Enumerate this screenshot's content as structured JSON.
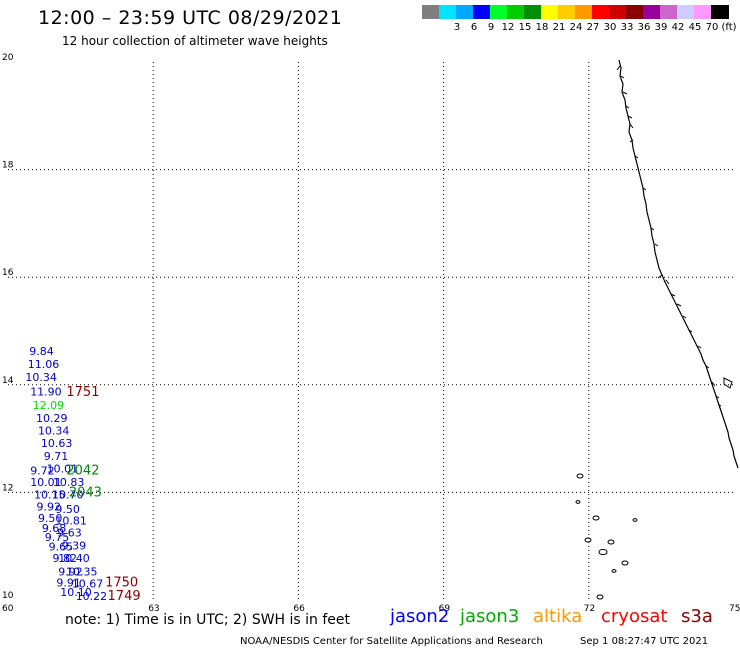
{
  "header": {
    "title": "12:00 – 23:59 UTC 08/29/2021",
    "subtitle": "12 hour collection of altimeter wave heights"
  },
  "legend": {
    "swatches": [
      {
        "color": "#7f7f7f",
        "label": ""
      },
      {
        "color": "#00e5ff",
        "label": "3"
      },
      {
        "color": "#00a8ff",
        "label": "6"
      },
      {
        "color": "#0000ff",
        "label": "9"
      },
      {
        "color": "#00ff2a",
        "label": "12"
      },
      {
        "color": "#00cc00",
        "label": "15"
      },
      {
        "color": "#008f00",
        "label": "18"
      },
      {
        "color": "#ffff00",
        "label": "21"
      },
      {
        "color": "#ffcc00",
        "label": "24"
      },
      {
        "color": "#ff9900",
        "label": "27"
      },
      {
        "color": "#ff0000",
        "label": "30"
      },
      {
        "color": "#cc0000",
        "label": "33"
      },
      {
        "color": "#8b0000",
        "label": "36"
      },
      {
        "color": "#990099",
        "label": "39"
      },
      {
        "color": "#cc66cc",
        "label": "42"
      },
      {
        "color": "#ccccff",
        "label": "45"
      },
      {
        "color": "#ff99ff",
        "label": "70"
      },
      {
        "color": "#000000",
        "label": "(ft)"
      }
    ]
  },
  "axes": {
    "lon_ticks": [
      "60",
      "63",
      "66",
      "69",
      "72",
      "75"
    ],
    "lat_ticks": [
      "10",
      "12",
      "14",
      "16",
      "18",
      "20"
    ],
    "lon_range": [
      60,
      75
    ],
    "lat_range": [
      10,
      20
    ]
  },
  "wave_heights": [
    {
      "text": "9.84",
      "lon": 60.48,
      "lat": 14.55,
      "color": "#0000cc"
    },
    {
      "text": "11.06",
      "lon": 60.45,
      "lat": 14.31,
      "color": "#0000cc"
    },
    {
      "text": "10.34",
      "lon": 60.4,
      "lat": 14.07,
      "color": "#0000cc"
    },
    {
      "text": "11.90",
      "lon": 60.5,
      "lat": 13.8,
      "color": "#0000cc"
    },
    {
      "text": "12.09",
      "lon": 60.55,
      "lat": 13.55,
      "color": "#00dd00"
    },
    {
      "text": "10.29",
      "lon": 60.62,
      "lat": 13.31,
      "color": "#0000cc"
    },
    {
      "text": "10.34",
      "lon": 60.66,
      "lat": 13.08,
      "color": "#0000cc"
    },
    {
      "text": "10.63",
      "lon": 60.72,
      "lat": 12.84,
      "color": "#0000cc"
    },
    {
      "text": "9.71",
      "lon": 60.78,
      "lat": 12.6,
      "color": "#0000cc"
    },
    {
      "text": "10.01",
      "lon": 60.84,
      "lat": 12.37,
      "color": "#0000cc"
    },
    {
      "text": "9.72",
      "lon": 60.5,
      "lat": 12.33,
      "color": "#0000cc"
    },
    {
      "text": "10.01",
      "lon": 60.5,
      "lat": 12.12,
      "color": "#0000cc"
    },
    {
      "text": "10.83",
      "lon": 60.97,
      "lat": 12.12,
      "color": "#0000cc"
    },
    {
      "text": "10.15",
      "lon": 60.58,
      "lat": 11.89,
      "color": "#0000cc"
    },
    {
      "text": "10.70",
      "lon": 60.95,
      "lat": 11.89,
      "color": "#0000cc"
    },
    {
      "text": "9.92",
      "lon": 60.63,
      "lat": 11.66,
      "color": "#0000cc"
    },
    {
      "text": "9.50",
      "lon": 61.02,
      "lat": 11.62,
      "color": "#0000cc"
    },
    {
      "text": "9.50",
      "lon": 60.66,
      "lat": 11.45,
      "color": "#0000cc"
    },
    {
      "text": "10.81",
      "lon": 61.02,
      "lat": 11.4,
      "color": "#0000cc"
    },
    {
      "text": "9.68",
      "lon": 60.74,
      "lat": 11.26,
      "color": "#0000cc"
    },
    {
      "text": "9.63",
      "lon": 61.06,
      "lat": 11.18,
      "color": "#0000cc"
    },
    {
      "text": "9.75",
      "lon": 60.8,
      "lat": 11.1,
      "color": "#0000cc"
    },
    {
      "text": "9.39",
      "lon": 61.15,
      "lat": 10.94,
      "color": "#0000cc"
    },
    {
      "text": "9.65",
      "lon": 60.88,
      "lat": 10.92,
      "color": "#0000cc"
    },
    {
      "text": "10.40",
      "lon": 61.08,
      "lat": 10.71,
      "color": "#0000cc"
    },
    {
      "text": "9.82",
      "lon": 60.96,
      "lat": 10.71,
      "color": "#0000cc"
    },
    {
      "text": "9.92",
      "lon": 61.08,
      "lat": 10.46,
      "color": "#0000cc"
    },
    {
      "text": "10.35",
      "lon": 61.24,
      "lat": 10.46,
      "color": "#0000cc"
    },
    {
      "text": "9.91",
      "lon": 61.04,
      "lat": 10.25,
      "color": "#0000cc"
    },
    {
      "text": "10.67",
      "lon": 61.36,
      "lat": 10.23,
      "color": "#0000cc"
    },
    {
      "text": "10.10",
      "lon": 61.12,
      "lat": 10.07,
      "color": "#0000cc"
    },
    {
      "text": "10.22",
      "lon": 61.44,
      "lat": 10.0,
      "color": "#0000cc"
    }
  ],
  "pass_times": [
    {
      "text": "1751",
      "lon": 61.0,
      "lat": 13.79,
      "color": "#8b0000"
    },
    {
      "text": "2042",
      "lon": 61.0,
      "lat": 12.33,
      "color": "#008800"
    },
    {
      "text": "2043",
      "lon": 61.05,
      "lat": 11.92,
      "color": "#008800"
    },
    {
      "text": "1750",
      "lon": 61.8,
      "lat": 10.25,
      "color": "#8b0000"
    },
    {
      "text": "1749",
      "lon": 61.85,
      "lat": 10.0,
      "color": "#8b0000"
    }
  ],
  "footer": {
    "note": "note: 1) Time is in UTC; 2) SWH is in feet",
    "satellites": [
      {
        "name": "jason2",
        "color": "#0000ff"
      },
      {
        "name": "jason3",
        "color": "#00aa00"
      },
      {
        "name": "altika",
        "color": "#ff9900"
      },
      {
        "name": "cryosat",
        "color": "#ff0000"
      },
      {
        "name": "s3a",
        "color": "#8b0000"
      }
    ],
    "credit": "NOAA/NESDIS Center for Satellite Applications and Research",
    "timestamp": "Sep  1 08:27:47 UTC 2021"
  }
}
